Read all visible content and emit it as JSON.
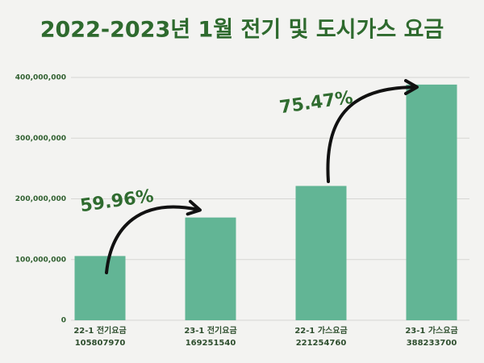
{
  "chart_data": {
    "type": "bar",
    "title": "2022-2023년 1월 전기 및 도시가스 요금",
    "categories": [
      "22-1 전기요금",
      "23-1 전기요금",
      "22-1 가스요금",
      "23-1 가스요금"
    ],
    "values": [
      105807970,
      169251540,
      221254760,
      388233700
    ],
    "color": "#62b595",
    "ylim": [
      0,
      400000000
    ],
    "yticks": [
      0,
      {
        "value": 100000000,
        "label": "100,000,000"
      },
      {
        "value": 200000000,
        "label": "200,000,000"
      },
      {
        "value": 300000000,
        "label": "300,000,000"
      },
      {
        "value": 400000000,
        "label": "400,000,000"
      }
    ],
    "grid": true,
    "annotations": [
      "59.96%",
      "75.47%"
    ]
  }
}
